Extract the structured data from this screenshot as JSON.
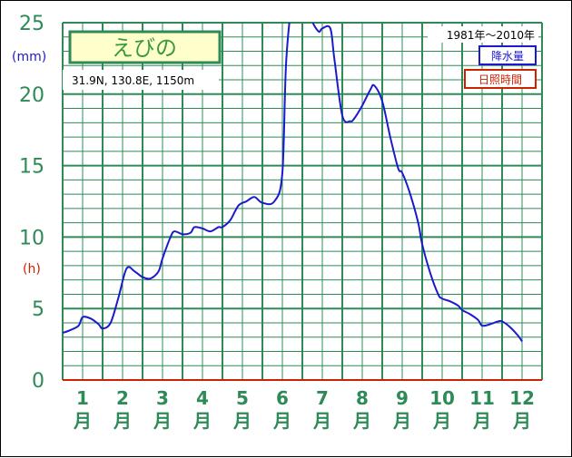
{
  "chart_data": {
    "type": "line",
    "title": "えびの",
    "location": "31.9N, 130.8E, 1150m",
    "period": "1981年〜2010年",
    "unit_left": "(mm)",
    "unit_right": "(h)",
    "yticks": [
      "0",
      "5",
      "10",
      "15",
      "20",
      "25"
    ],
    "ylim": [
      0,
      25
    ],
    "xlim": [
      1,
      13
    ],
    "months": [
      "1",
      "2",
      "3",
      "4",
      "5",
      "6",
      "7",
      "8",
      "9",
      "10",
      "11",
      "12"
    ],
    "month_suffix": "月",
    "legend": [
      {
        "label": "降水量",
        "color": "#1a1acd"
      },
      {
        "label": "日照時間",
        "color": "#cc2200"
      }
    ],
    "grid": true,
    "colors": {
      "grid": "#2e8b57",
      "axis": "#2e8b57",
      "tick": "#2e8b57"
    },
    "series": [
      {
        "name": "降水量",
        "color": "#1a1acd",
        "x": [
          1.0,
          1.2,
          1.4,
          1.5,
          1.7,
          1.9,
          2.0,
          2.2,
          2.4,
          2.6,
          2.8,
          3.0,
          3.2,
          3.4,
          3.5,
          3.7,
          3.8,
          4.0,
          4.2,
          4.3,
          4.5,
          4.7,
          4.9,
          5.0,
          5.2,
          5.4,
          5.6,
          5.8,
          6.0,
          6.3,
          6.5,
          6.6,
          6.8,
          7.0,
          7.2,
          7.4,
          7.5,
          7.7,
          7.8,
          8.0,
          8.2,
          8.3,
          8.5,
          8.7,
          8.8,
          9.0,
          9.2,
          9.4,
          9.5,
          9.7,
          9.9,
          10.0,
          10.2,
          10.4,
          10.5,
          10.7,
          10.9,
          11.0,
          11.2,
          11.4,
          11.5,
          11.7,
          11.9,
          12.0,
          12.2,
          12.4,
          12.5
        ],
        "values": [
          3.3,
          3.5,
          3.8,
          4.4,
          4.3,
          3.9,
          3.6,
          4.0,
          5.8,
          7.8,
          7.6,
          7.2,
          7.1,
          7.6,
          8.5,
          10.0,
          10.4,
          10.2,
          10.3,
          10.7,
          10.6,
          10.4,
          10.7,
          10.7,
          11.2,
          12.2,
          12.5,
          12.8,
          12.4,
          12.5,
          14.5,
          22.5,
          27.5,
          28.5,
          25.5,
          24.4,
          24.6,
          24.6,
          22.5,
          18.5,
          18.1,
          18.3,
          19.2,
          20.3,
          20.6,
          19.5,
          17.0,
          14.8,
          14.5,
          13.0,
          11.0,
          9.5,
          7.5,
          6.0,
          5.7,
          5.5,
          5.2,
          4.9,
          4.6,
          4.2,
          3.8,
          3.9,
          4.1,
          4.1,
          3.7,
          3.1,
          2.7
        ]
      }
    ]
  }
}
